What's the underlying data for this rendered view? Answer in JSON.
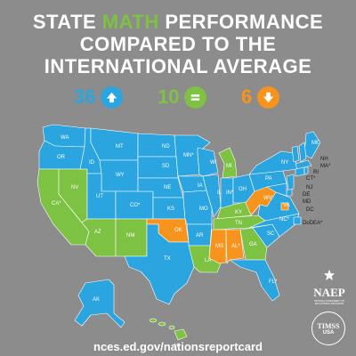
{
  "title": {
    "line1_pre": "STATE ",
    "line1_highlight": "MATH",
    "line1_post": " PERFORMANCE",
    "line2": "COMPARED TO THE",
    "line3": "INTERNATIONAL AVERAGE"
  },
  "stats": [
    {
      "value": "36",
      "meaning": "above",
      "icon": "up-arrow-icon",
      "color": "#2aa5e0"
    },
    {
      "value": "10",
      "meaning": "equal",
      "icon": "equals-icon",
      "color": "#7dc242"
    },
    {
      "value": "6",
      "meaning": "below",
      "icon": "down-arrow-icon",
      "color": "#f7941d"
    }
  ],
  "colors": {
    "above": "#2aa5e0",
    "equal": "#7dc242",
    "below": "#f7941d",
    "background": "#8c8c8c"
  },
  "states": {
    "WA": "WA",
    "OR": "OR",
    "CA": "CA*",
    "NV": "NV",
    "ID": "ID",
    "MT": "MT",
    "WY": "WY",
    "UT": "UT",
    "AZ": "AZ",
    "CO": "CO*",
    "NM": "NM",
    "ND": "ND",
    "SD": "SD",
    "NE": "NE",
    "KS": "KS",
    "OK": "OK",
    "TX": "TX",
    "MN": "MN*",
    "IA": "IA",
    "MO": "MO",
    "AR": "AR",
    "LA": "LA",
    "WI": "WI",
    "IL": "IL",
    "MI": "MI",
    "IN": "IN*",
    "OH": "OH",
    "KY": "KY",
    "TN": "TN",
    "MS": "MS",
    "AL": "AL*",
    "GA": "GA",
    "FL": "FL*",
    "SC": "SC",
    "NC": "NC*",
    "VA": "VA",
    "WV": "WV",
    "PA": "PA",
    "NY": "NY",
    "ME": "ME",
    "VT": "VT",
    "NH": "NH",
    "MA": "MA*",
    "RI": "RI",
    "CT": "CT*",
    "NJ": "NJ",
    "DE": "DE",
    "MD": "MD",
    "DC": "DC",
    "DoDEA": "DoDEA*",
    "AK": "AK",
    "HI": "HI"
  },
  "logos": {
    "naep_name": "NAEP",
    "naep_sub": "NATIONAL ASSESSMENT OF EDUCATIONAL PROGRESS",
    "timss_name": "TIMSS",
    "timss_sub": "USA"
  },
  "url": "nces.ed.gov/nationsreportcard"
}
